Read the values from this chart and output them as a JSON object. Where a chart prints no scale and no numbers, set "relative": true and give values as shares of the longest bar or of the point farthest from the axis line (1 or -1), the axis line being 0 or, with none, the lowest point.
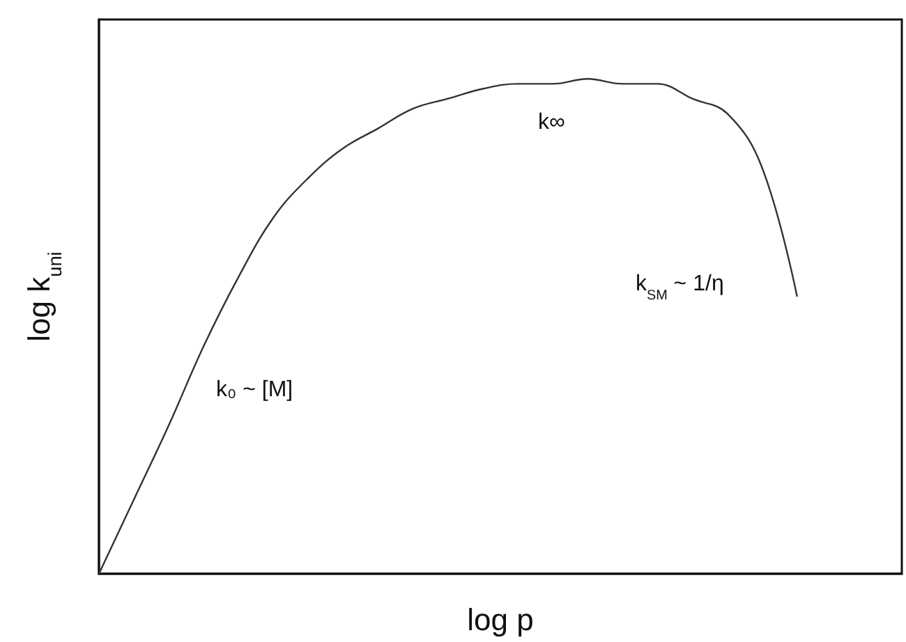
{
  "chart_data": {
    "type": "line",
    "relative": true,
    "xlabel": "log p",
    "ylabel": "log k$_{uni}$",
    "categories": [
      null,
      null,
      null,
      null,
      null,
      null,
      null,
      null,
      null,
      null,
      null,
      null,
      null,
      null,
      null,
      null,
      null,
      null,
      null,
      null,
      null,
      null,
      null,
      null
    ],
    "series": [
      {
        "color": "#333333",
        "values": [
          0,
          0.15,
          0.3,
          0.46,
          0.6,
          0.72,
          0.8,
          0.86,
          0.9,
          0.94,
          0.96,
          0.98,
          0.99,
          0.99,
          1,
          0.99,
          0.99,
          0.96,
          0.93,
          0.82,
          0.56,
          null,
          null,
          null
        ]
      }
    ],
    "annotations": [
      "k₀ ~ [M]",
      "k∞",
      "k$_{SM}$ ~ 1/η"
    ],
    "line_style": "solid"
  }
}
